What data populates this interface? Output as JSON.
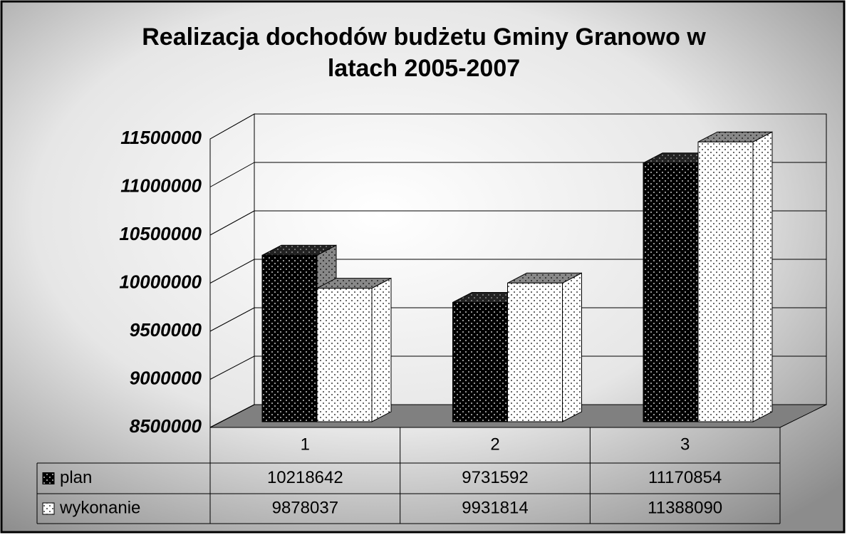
{
  "chart_data": {
    "type": "bar3d",
    "title": "Realizacja dochodów budżetu Gminy Granowo w latach 2005-2007",
    "categories": [
      "1",
      "2",
      "3"
    ],
    "series": [
      {
        "name": "plan",
        "color": "#000000",
        "values": [
          10218642,
          9731592,
          11170854
        ]
      },
      {
        "name": "wykonanie",
        "color": "#ffffff",
        "values": [
          9878037,
          9931814,
          11388090
        ]
      }
    ],
    "ylim": [
      8500000,
      11500000
    ],
    "yticks": [
      8500000,
      9000000,
      9500000,
      10000000,
      10500000,
      11000000,
      11500000
    ],
    "grid": true,
    "data_table": true
  }
}
